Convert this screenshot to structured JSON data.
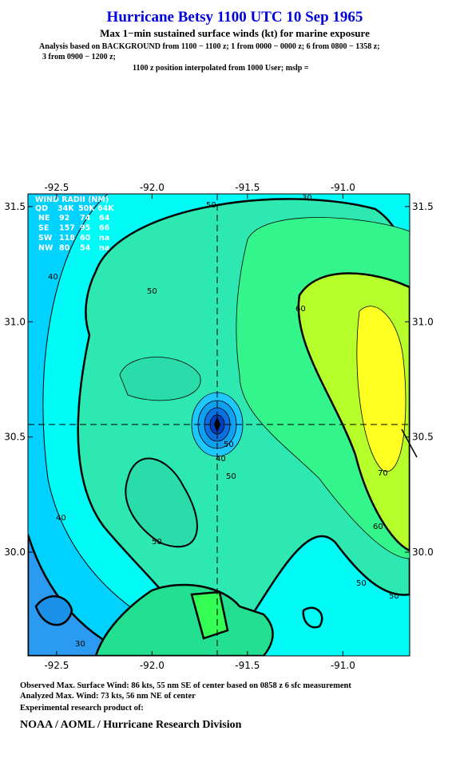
{
  "header": {
    "title": "Hurricane Betsy 1100 UTC 10 Sep 1965",
    "subtitle": "Max 1−min sustained surface winds (kt) for marine exposure",
    "analysis": [
      "Analysis based on  BACKGROUND from 1100 − 1100 z;  1 from 0000 − 0000 z;  6 from 0800 − 1358 z;",
      "3 from 0900 − 1200 z;",
      "1100 z position interpolated from 1000 User; mslp ="
    ]
  },
  "map": {
    "xlim": [
      -92.65,
      -90.65
    ],
    "ylim": [
      29.55,
      31.555
    ],
    "xticks": [
      -92.5,
      {
        "value": -92,
        "label": "-92.0"
      },
      -91.5,
      {
        "value": -91,
        "label": "-91.0"
      }
    ],
    "yticks": [
      31.5,
      {
        "value": 31,
        "label": "31.0"
      },
      30.5,
      {
        "value": 30,
        "label": "30.0"
      }
    ],
    "contour_labels": [
      "50",
      "30",
      "50",
      "40",
      "60",
      "50",
      "40",
      "50",
      "70",
      "60",
      "40",
      "50",
      "50",
      "50",
      "30"
    ]
  },
  "wind_radii": {
    "title": "WIND RADII (NM)",
    "columns": [
      "QD",
      "34K",
      "50K",
      "64K"
    ],
    "rows": [
      [
        "NE",
        92,
        74,
        64
      ],
      [
        "SE",
        157,
        95,
        66
      ],
      [
        "SW",
        118,
        60,
        "na"
      ],
      [
        "NW",
        80,
        54,
        "na"
      ]
    ]
  },
  "footer": {
    "lines": [
      "Observed Max. Surface Wind: 86 kts, 55 nm SE of center based on 0858 z 6 sfc measurement",
      "Analyzed Max. Wind: 73 kts, 56 nm NE of center",
      "Experimental research product of:"
    ],
    "credit": "NOAA / AOML / Hurricane Research Division"
  }
}
